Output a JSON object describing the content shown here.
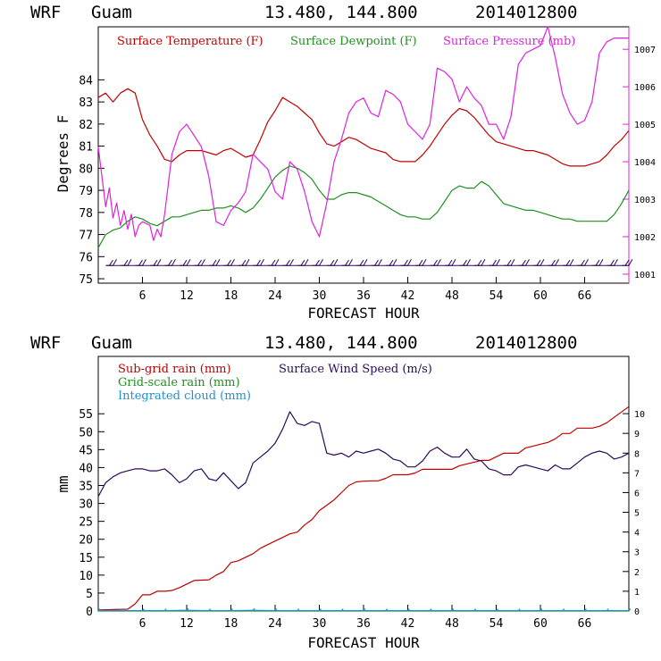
{
  "charts": [
    {
      "header": {
        "model": "WRF",
        "location": "Guam",
        "coords": "13.480, 144.800",
        "init": "2014012800"
      },
      "xlabel": "FORECAST HOUR",
      "ylabel": "Degrees F",
      "legend": [
        {
          "label": "Surface Temperature (F)",
          "color": "#c00000"
        },
        {
          "label": "Surface Dewpoint (F)",
          "color": "#1f8f1f"
        },
        {
          "label": "Surface Pressure (mb)",
          "color": "#e020e0"
        }
      ]
    },
    {
      "header": {
        "model": "WRF",
        "location": "Guam",
        "coords": "13.480, 144.800",
        "init": "2014012800"
      },
      "xlabel": "FORECAST HOUR",
      "ylabel": "mm",
      "legend": [
        {
          "label": "Sub-grid rain (mm)",
          "color": "#c00000"
        },
        {
          "label": "Surface Wind Speed (m/s)",
          "color": "#2a0a5a"
        },
        {
          "label": "Grid-scale rain (mm)",
          "color": "#1f8f1f"
        },
        {
          "label": "Integrated cloud (mm)",
          "color": "#2090d0"
        }
      ]
    }
  ],
  "chart_data": [
    {
      "type": "line",
      "title": "WRF Guam 13.480, 144.800 2014012800",
      "xlabel": "FORECAST HOUR",
      "ylabel": "Degrees F",
      "xlim": [
        0,
        72
      ],
      "ylim": [
        74.8,
        86.4
      ],
      "y2lim": [
        1000.76,
        1007.6
      ],
      "x_ticks": [
        "6",
        "12",
        "18",
        "24",
        "30",
        "36",
        "42",
        "48",
        "54",
        "60",
        "66"
      ],
      "y_ticks": [
        "75",
        "76",
        "77",
        "78",
        "79",
        "80",
        "81",
        "82",
        "83",
        "84"
      ],
      "y2_ticks": [
        "1001",
        "1002",
        "1003",
        "1004",
        "1005",
        "1006",
        "1007"
      ],
      "series": [
        {
          "name": "Surface Temperature (F)",
          "axis": "left",
          "color": "#c00000",
          "x": [
            0,
            1,
            2,
            3,
            4,
            5,
            6,
            7,
            8,
            9,
            10,
            11,
            12,
            13,
            14,
            15,
            16,
            17,
            18,
            19,
            20,
            21,
            22,
            23,
            24,
            25,
            26,
            27,
            28,
            29,
            30,
            31,
            32,
            33,
            34,
            35,
            36,
            37,
            38,
            39,
            40,
            41,
            42,
            43,
            44,
            45,
            46,
            47,
            48,
            49,
            50,
            51,
            52,
            53,
            54,
            55,
            56,
            57,
            58,
            59,
            60,
            61,
            62,
            63,
            64,
            65,
            66,
            67,
            68,
            69,
            70,
            71,
            72
          ],
          "values": [
            83.2,
            83.4,
            83.0,
            83.4,
            83.6,
            83.4,
            82.2,
            81.5,
            81.0,
            80.4,
            80.3,
            80.6,
            80.8,
            80.8,
            80.8,
            80.7,
            80.6,
            80.8,
            80.9,
            80.7,
            80.5,
            80.6,
            81.3,
            82.1,
            82.6,
            83.2,
            83.0,
            82.8,
            82.5,
            82.2,
            81.6,
            81.1,
            81.0,
            81.2,
            81.4,
            81.3,
            81.1,
            80.9,
            80.8,
            80.7,
            80.4,
            80.3,
            80.3,
            80.3,
            80.6,
            81.0,
            81.5,
            82.0,
            82.4,
            82.7,
            82.6,
            82.3,
            81.9,
            81.5,
            81.2,
            81.1,
            81.0,
            80.9,
            80.8,
            80.8,
            80.7,
            80.6,
            80.4,
            80.2,
            80.1,
            80.1,
            80.1,
            80.2,
            80.3,
            80.6,
            81.0,
            81.3,
            81.7
          ]
        },
        {
          "name": "Surface Dewpoint (F)",
          "axis": "left",
          "color": "#1f8f1f",
          "x": [
            0,
            1,
            2,
            3,
            4,
            5,
            6,
            7,
            8,
            9,
            10,
            11,
            12,
            13,
            14,
            15,
            16,
            17,
            18,
            19,
            20,
            21,
            22,
            23,
            24,
            25,
            26,
            27,
            28,
            29,
            30,
            31,
            32,
            33,
            34,
            35,
            36,
            37,
            38,
            39,
            40,
            41,
            42,
            43,
            44,
            45,
            46,
            47,
            48,
            49,
            50,
            51,
            52,
            53,
            54,
            55,
            56,
            57,
            58,
            59,
            60,
            61,
            62,
            63,
            64,
            65,
            66,
            67,
            68,
            69,
            70,
            71,
            72
          ],
          "values": [
            76.4,
            77.0,
            77.2,
            77.3,
            77.6,
            77.8,
            77.7,
            77.5,
            77.4,
            77.6,
            77.8,
            77.8,
            77.9,
            78.0,
            78.1,
            78.1,
            78.2,
            78.2,
            78.3,
            78.2,
            78.0,
            78.2,
            78.6,
            79.1,
            79.6,
            79.9,
            80.1,
            80.0,
            79.8,
            79.5,
            79.0,
            78.6,
            78.6,
            78.8,
            78.9,
            78.9,
            78.8,
            78.7,
            78.5,
            78.3,
            78.1,
            77.9,
            77.8,
            77.8,
            77.7,
            77.7,
            78.0,
            78.5,
            79.0,
            79.2,
            79.1,
            79.1,
            79.4,
            79.2,
            78.8,
            78.4,
            78.3,
            78.2,
            78.1,
            78.1,
            78.0,
            77.9,
            77.8,
            77.7,
            77.7,
            77.6,
            77.6,
            77.6,
            77.6,
            77.6,
            77.9,
            78.4,
            79.0
          ]
        },
        {
          "name": "Surface Pressure (mb)",
          "axis": "right",
          "color": "#e020e0",
          "x": [
            0,
            0.5,
            1,
            1.5,
            2,
            2.5,
            3,
            3.5,
            4,
            4.5,
            5,
            5.5,
            6,
            7,
            7.5,
            8,
            8.5,
            9,
            10,
            11,
            12,
            13,
            14,
            15,
            16,
            17,
            18,
            19,
            20,
            21,
            22,
            23,
            24,
            25,
            26,
            27,
            28,
            29,
            30,
            31,
            32,
            33,
            34,
            35,
            36,
            37,
            38,
            39,
            40,
            41,
            42,
            43,
            44,
            45,
            46,
            47,
            48,
            49,
            50,
            51,
            52,
            53,
            54,
            55,
            56,
            57,
            58,
            59,
            60,
            61,
            62,
            63,
            64,
            65,
            66,
            67,
            68,
            69,
            70,
            71,
            72
          ],
          "values": [
            1004.4,
            1003.6,
            1002.8,
            1003.3,
            1002.5,
            1002.9,
            1002.3,
            1002.7,
            1002.2,
            1002.6,
            1002.0,
            1002.3,
            1002.4,
            1002.3,
            1001.9,
            1002.2,
            1002.0,
            1002.6,
            1004.2,
            1004.8,
            1005.0,
            1004.7,
            1004.4,
            1003.6,
            1002.4,
            1002.3,
            1002.7,
            1002.9,
            1003.2,
            1004.2,
            1004.0,
            1003.8,
            1003.2,
            1003.0,
            1004.0,
            1003.8,
            1003.2,
            1002.4,
            1002.0,
            1002.9,
            1004.0,
            1004.6,
            1005.3,
            1005.6,
            1005.7,
            1005.3,
            1005.2,
            1005.9,
            1005.8,
            1005.6,
            1005.0,
            1004.8,
            1004.6,
            1005.0,
            1006.5,
            1006.4,
            1006.2,
            1005.6,
            1006.0,
            1005.7,
            1005.5,
            1005.0,
            1005.0,
            1004.6,
            1005.2,
            1006.6,
            1006.9,
            1007.0,
            1007.1,
            1007.6,
            1006.8,
            1005.8,
            1005.3,
            1005.0,
            1005.1,
            1005.6,
            1006.9,
            1007.2,
            1007.3,
            1007.3,
            1007.3
          ]
        },
        {
          "name": "Wind barbs",
          "axis": "left",
          "color": "#2a0a5a",
          "baseline": 75.6,
          "x": [
            2,
            4,
            6,
            8,
            10,
            12,
            14,
            16,
            18,
            20,
            22,
            24,
            26,
            28,
            30,
            32,
            34,
            36,
            38,
            40,
            42,
            44,
            46,
            48,
            50,
            52,
            54,
            56,
            58,
            60,
            62,
            64,
            66,
            68,
            70,
            72
          ],
          "values": [
            75.6,
            75.6,
            75.6,
            75.6,
            75.6,
            75.6,
            75.6,
            75.6,
            75.6,
            75.6,
            75.6,
            75.6,
            75.6,
            75.6,
            75.6,
            75.6,
            75.6,
            75.6,
            75.6,
            75.6,
            75.6,
            75.6,
            75.6,
            75.6,
            75.6,
            75.6,
            75.6,
            75.6,
            75.6,
            75.6,
            75.6,
            75.6,
            75.6,
            75.6,
            75.6,
            75.6
          ]
        }
      ]
    },
    {
      "type": "line",
      "title": "WRF Guam 13.480, 144.800 2014012800",
      "xlabel": "FORECAST HOUR",
      "ylabel": "mm",
      "xlim": [
        0,
        72
      ],
      "ylim": [
        0,
        71
      ],
      "y2lim": [
        0,
        12.9
      ],
      "x_ticks": [
        "6",
        "12",
        "18",
        "24",
        "30",
        "36",
        "42",
        "48",
        "54",
        "60",
        "66"
      ],
      "y_ticks": [
        "0",
        "5",
        "10",
        "15",
        "20",
        "25",
        "30",
        "35",
        "40",
        "45",
        "50",
        "55"
      ],
      "y2_ticks": [
        "0",
        "1",
        "2",
        "3",
        "4",
        "5",
        "6",
        "7",
        "8",
        "9",
        "10"
      ],
      "series": [
        {
          "name": "Sub-grid rain (mm)",
          "axis": "left",
          "color": "#c00000",
          "x": [
            0,
            4,
            5,
            6,
            7,
            8,
            9,
            10,
            11,
            12,
            13,
            14,
            15,
            16,
            17,
            18,
            19,
            20,
            21,
            22,
            23,
            24,
            25,
            26,
            27,
            28,
            29,
            30,
            31,
            32,
            33,
            34,
            35,
            36,
            37,
            38,
            39,
            40,
            41,
            42,
            43,
            44,
            45,
            46,
            47,
            48,
            49,
            50,
            51,
            52,
            53,
            54,
            55,
            56,
            57,
            58,
            59,
            60,
            61,
            62,
            63,
            64,
            65,
            66,
            67,
            68,
            69,
            70,
            71,
            72
          ],
          "values": [
            0.3,
            0.5,
            2.0,
            4.5,
            4.5,
            5.5,
            5.5,
            5.7,
            6.5,
            7.5,
            8.5,
            8.6,
            8.7,
            10.0,
            11.0,
            13.5,
            14.0,
            15.0,
            16.0,
            17.5,
            18.5,
            19.5,
            20.5,
            21.5,
            22.0,
            24.0,
            25.5,
            28.0,
            29.5,
            31.0,
            33.0,
            35.0,
            36.0,
            36.2,
            36.3,
            36.3,
            37.0,
            38.0,
            38.0,
            38.0,
            38.5,
            39.5,
            39.5,
            39.5,
            39.5,
            39.5,
            40.5,
            41.0,
            41.5,
            42.0,
            42.0,
            43.0,
            44.0,
            44.0,
            44.0,
            45.5,
            46.0,
            46.5,
            47.0,
            48.0,
            49.5,
            49.5,
            51.0,
            51.0,
            51.0,
            51.5,
            52.5,
            54.0,
            55.5,
            57.0
          ]
        },
        {
          "name": "Surface Wind Speed (m/s)",
          "axis": "right",
          "color": "#2a0a5a",
          "x": [
            0,
            1,
            2,
            3,
            4,
            5,
            6,
            7,
            8,
            9,
            10,
            11,
            12,
            13,
            14,
            15,
            16,
            17,
            18,
            19,
            20,
            21,
            22,
            23,
            24,
            25,
            26,
            27,
            28,
            29,
            30,
            31,
            32,
            33,
            34,
            35,
            36,
            37,
            38,
            39,
            40,
            41,
            42,
            43,
            44,
            45,
            46,
            47,
            48,
            49,
            50,
            51,
            52,
            53,
            54,
            55,
            56,
            57,
            58,
            59,
            60,
            61,
            62,
            63,
            64,
            65,
            66,
            67,
            68,
            69,
            70,
            71,
            72
          ],
          "values": [
            5.8,
            6.5,
            6.8,
            7.0,
            7.1,
            7.2,
            7.2,
            7.1,
            7.1,
            7.2,
            6.9,
            6.5,
            6.7,
            7.1,
            7.2,
            6.7,
            6.6,
            7.0,
            6.6,
            6.2,
            6.5,
            7.5,
            7.8,
            8.1,
            8.5,
            9.2,
            10.1,
            9.5,
            9.4,
            9.6,
            9.5,
            8.0,
            7.9,
            8.0,
            7.8,
            8.1,
            8.0,
            8.1,
            8.2,
            8.0,
            7.7,
            7.6,
            7.3,
            7.3,
            7.6,
            8.1,
            8.3,
            8.0,
            7.8,
            7.8,
            8.2,
            7.7,
            7.6,
            7.2,
            7.1,
            6.9,
            6.9,
            7.3,
            7.4,
            7.3,
            7.2,
            7.1,
            7.4,
            7.2,
            7.2,
            7.5,
            7.8,
            8.0,
            8.1,
            8.0,
            7.7,
            7.8,
            8.0
          ]
        },
        {
          "name": "Grid-scale rain (mm)",
          "axis": "left",
          "color": "#1f8f1f",
          "x": [
            0,
            72
          ],
          "values": [
            0.0,
            0.0
          ]
        },
        {
          "name": "Integrated cloud (mm)",
          "axis": "left",
          "color": "#2090d0",
          "x": [
            0,
            3,
            6,
            9,
            12,
            15,
            18,
            21,
            24,
            27,
            30,
            33,
            36,
            39,
            42,
            45,
            48,
            51,
            54,
            57,
            60,
            63,
            66,
            69,
            72
          ],
          "values": [
            0.1,
            0.1,
            0.1,
            0.1,
            0.2,
            0.1,
            0.1,
            0.2,
            0.1,
            0.1,
            0.1,
            0.1,
            0.1,
            0.1,
            0.1,
            0.1,
            0.1,
            0.1,
            0.1,
            0.1,
            0.1,
            0.1,
            0.1,
            0.1,
            0.1
          ]
        }
      ]
    }
  ]
}
